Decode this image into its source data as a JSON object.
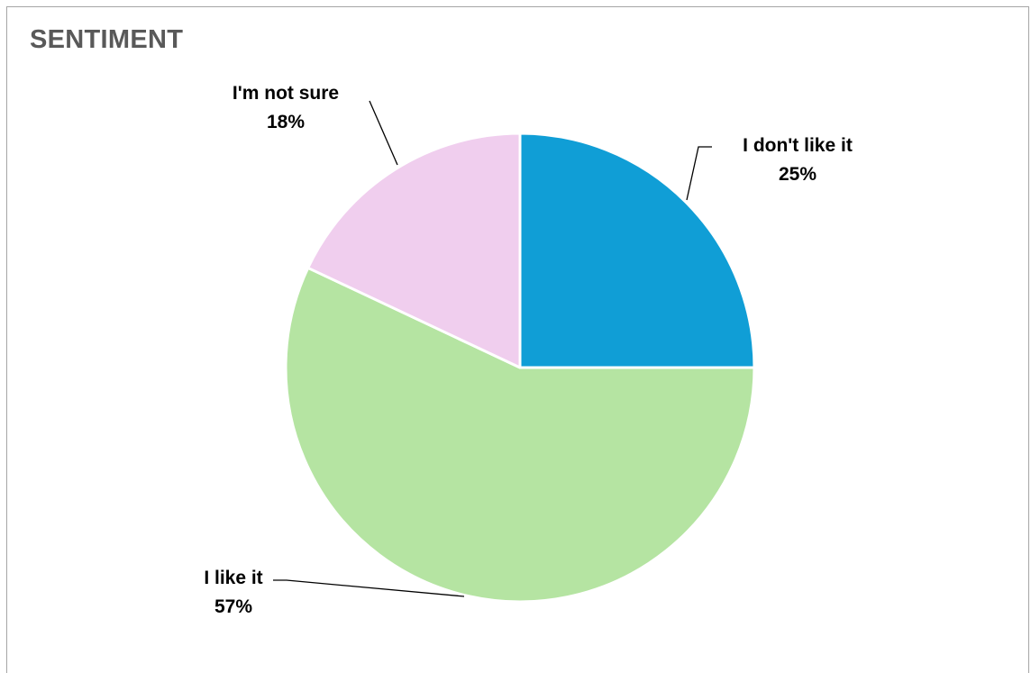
{
  "chart_data": {
    "type": "pie",
    "title": "SENTIMENT",
    "slices": [
      {
        "label": "I don't like it",
        "value": 25,
        "value_label": "25%",
        "color": "#109ED6"
      },
      {
        "label": "I like it",
        "value": 57,
        "value_label": "57%",
        "color": "#B5E4A2"
      },
      {
        "label": "I'm not sure",
        "value": 18,
        "value_label": "18%",
        "color": "#F0CEEE"
      }
    ],
    "start_angle": "12 o'clock",
    "direction": "clockwise",
    "labels": "outside with leader lines",
    "legend": "none"
  }
}
